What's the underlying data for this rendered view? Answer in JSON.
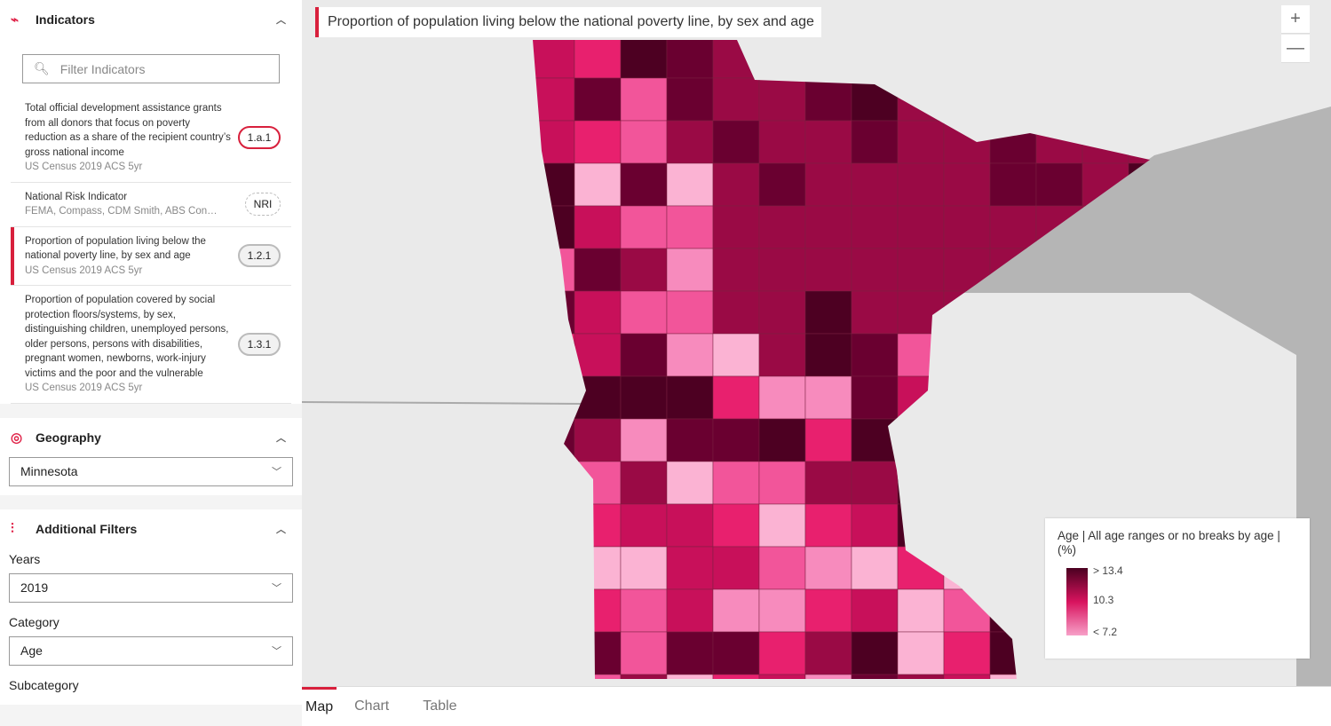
{
  "indicators": {
    "title": "Indicators",
    "search_placeholder": "Filter Indicators",
    "items": [
      {
        "title": "Total official development assistance grants from all donors that focus on poverty reduction as a share of the recipient country’s gross national income",
        "source": "US Census 2019 ACS 5yr",
        "code": "1.a.1"
      },
      {
        "title": "National Risk Indicator",
        "source": "FEMA, Compass, CDM Smith, ABS Con…",
        "code": "NRI"
      },
      {
        "title": "Proportion of population living below the national poverty line, by sex and age",
        "source": "US Census 2019 ACS 5yr",
        "code": "1.2.1",
        "selected": true
      },
      {
        "title": "Proportion of population covered by social protection floors/systems, by sex, distinguishing children, unemployed persons, older persons, persons with disabilities, pregnant women, newborns, work-injury victims and the poor and the vulnerable",
        "source": "US Census 2019 ACS 5yr",
        "code": "1.3.1"
      }
    ]
  },
  "geography": {
    "title": "Geography",
    "value": "Minnesota"
  },
  "filters": {
    "title": "Additional Filters",
    "years_label": "Years",
    "years_value": "2019",
    "category_label": "Category",
    "category_value": "Age",
    "subcategory_label": "Subcategory"
  },
  "map": {
    "title": "Proportion of population living below the national poverty line, by sex and age",
    "zoom_in": "+",
    "zoom_out": "—",
    "legend": {
      "title": "Age | All age ranges or no breaks by age | (%)",
      "high": "> 13.4",
      "mid": "10.3",
      "low": "< 7.2",
      "colors": [
        "#4a0020",
        "#d8135e",
        "#f7a0c8"
      ]
    }
  },
  "tabs": [
    "Map",
    "Chart",
    "Table"
  ],
  "accent": "#d8203c"
}
